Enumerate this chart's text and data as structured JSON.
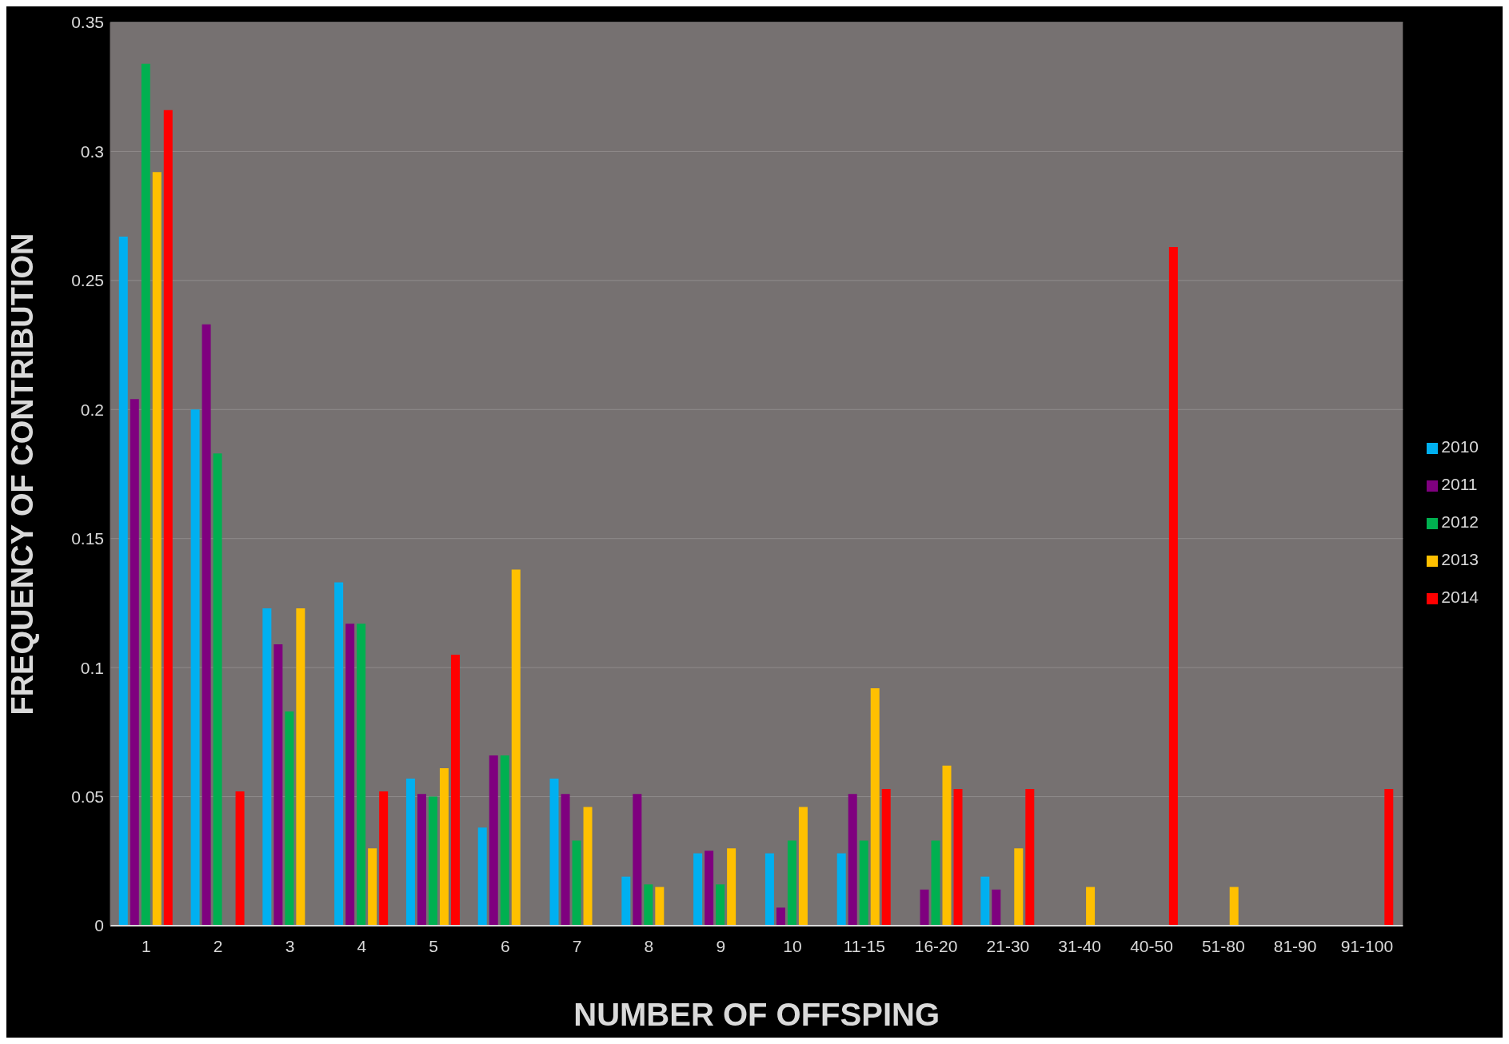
{
  "chart_data": {
    "type": "bar",
    "xlabel": "NUMBER OF OFFSPING",
    "ylabel": "FREQUENCY OF CONTRIBUTION",
    "categories": [
      "1",
      "2",
      "3",
      "4",
      "5",
      "6",
      "7",
      "8",
      "9",
      "10",
      "11-15",
      "16-20",
      "21-30",
      "31-40",
      "40-50",
      "51-80",
      "81-90",
      "91-100"
    ],
    "series": [
      {
        "name": "2010",
        "color": "#00b0f0",
        "values": [
          0.267,
          0.2,
          0.123,
          0.133,
          0.057,
          0.038,
          0.057,
          0.019,
          0.028,
          0.028,
          0.028,
          0,
          0.019,
          0,
          0,
          0,
          0,
          0
        ]
      },
      {
        "name": "2011",
        "color": "#7f007f",
        "values": [
          0.204,
          0.233,
          0.109,
          0.117,
          0.051,
          0.066,
          0.051,
          0.051,
          0.029,
          0.007,
          0.051,
          0.014,
          0.014,
          0,
          0,
          0,
          0,
          0
        ]
      },
      {
        "name": "2012",
        "color": "#00b050",
        "values": [
          0.334,
          0.183,
          0.083,
          0.117,
          0.05,
          0.066,
          0.033,
          0.016,
          0.016,
          0.033,
          0.033,
          0.033,
          0,
          0,
          0,
          0,
          0,
          0
        ]
      },
      {
        "name": "2013",
        "color": "#ffc000",
        "values": [
          0.292,
          0,
          0.123,
          0.03,
          0.061,
          0.138,
          0.046,
          0.015,
          0.03,
          0.046,
          0.092,
          0.062,
          0.03,
          0.015,
          0,
          0.015,
          0,
          0
        ]
      },
      {
        "name": "2014",
        "color": "#ff0000",
        "values": [
          0.316,
          0.052,
          0,
          0.052,
          0.105,
          0,
          0,
          0,
          0,
          0,
          0.053,
          0.053,
          0.053,
          0,
          0.263,
          0,
          0,
          0.053
        ]
      }
    ],
    "ylim": [
      0,
      0.35
    ],
    "yticks": [
      0,
      0.05,
      0.1,
      0.15,
      0.2,
      0.25,
      0.3,
      0.35
    ],
    "grid": "y",
    "legend": "right"
  }
}
